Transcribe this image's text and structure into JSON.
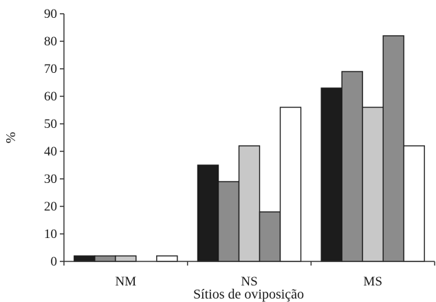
{
  "chart_data": {
    "type": "bar",
    "categories": [
      "NM",
      "NS",
      "MS"
    ],
    "series": [
      {
        "color": "#1c1c1c",
        "values": [
          2,
          35,
          63
        ]
      },
      {
        "color": "#8c8c8c",
        "values": [
          2,
          29,
          69
        ]
      },
      {
        "color": "#c8c8c8",
        "values": [
          2,
          42,
          56
        ]
      },
      {
        "color": "#8c8c8c",
        "values": [
          0,
          18,
          82
        ]
      },
      {
        "color": "#ffffff",
        "values": [
          2,
          56,
          42
        ]
      }
    ],
    "xlabel": "Sítios de oviposição",
    "ylabel": "%",
    "ylim": [
      0,
      90
    ],
    "yticks": [
      0,
      10,
      20,
      30,
      40,
      50,
      60,
      70,
      80,
      90
    ],
    "grid": false,
    "legend": "none"
  }
}
